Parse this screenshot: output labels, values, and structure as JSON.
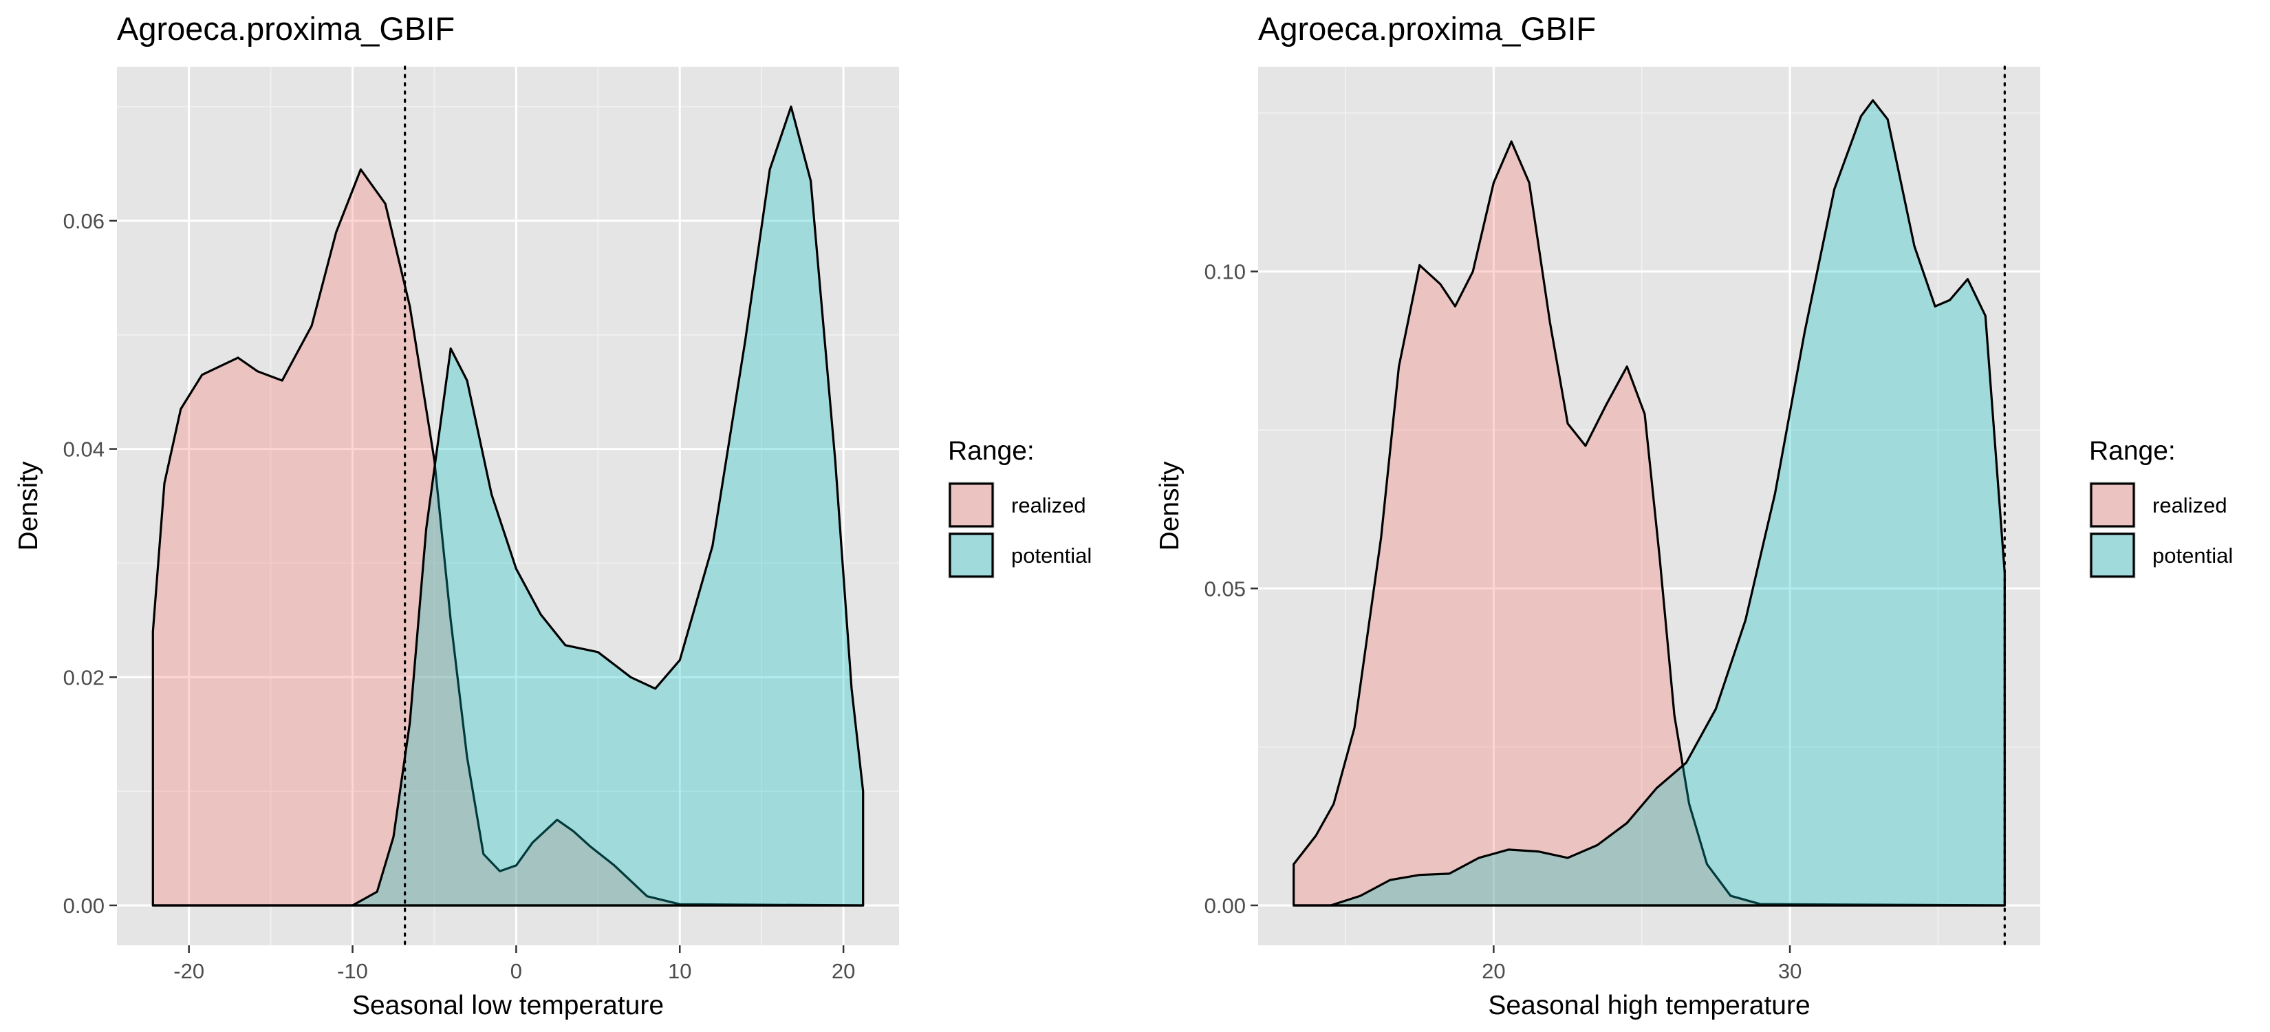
{
  "chart_data": [
    {
      "type": "area",
      "title": "Agroeca.proxima_GBIF",
      "xlabel": "Seasonal low temperature",
      "ylabel": "Density",
      "xlim": [
        -24.4,
        23.4
      ],
      "ylim": [
        -0.0035,
        0.0735
      ],
      "x_ticks": [
        -20,
        -10,
        0,
        10,
        20
      ],
      "x_tick_labels": [
        "-20",
        "-10",
        "0",
        "10",
        "20"
      ],
      "y_ticks": [
        0,
        0.02,
        0.04,
        0.06
      ],
      "y_tick_labels": [
        "0.00",
        "0.02",
        "0.04",
        "0.06"
      ],
      "grid": true,
      "reference_line": {
        "x": -6.8,
        "style": "dotted"
      },
      "legend": {
        "title": "Range:",
        "position": "right",
        "entries": [
          "realized",
          "potential"
        ]
      },
      "series": [
        {
          "name": "realized",
          "color": "#F8766D",
          "points": [
            [
              -22.2,
              0.024
            ],
            [
              -21.5,
              0.037
            ],
            [
              -20.5,
              0.0435
            ],
            [
              -19.2,
              0.0465
            ],
            [
              -17.0,
              0.048
            ],
            [
              -15.8,
              0.0468
            ],
            [
              -14.3,
              0.046
            ],
            [
              -12.5,
              0.0508
            ],
            [
              -11.0,
              0.059
            ],
            [
              -9.5,
              0.0645
            ],
            [
              -8.0,
              0.0615
            ],
            [
              -6.5,
              0.0525
            ],
            [
              -5.0,
              0.039
            ],
            [
              -4.0,
              0.025
            ],
            [
              -3.0,
              0.013
            ],
            [
              -2.0,
              0.0045
            ],
            [
              -1.0,
              0.003
            ],
            [
              0.0,
              0.0035
            ],
            [
              1.0,
              0.0055
            ],
            [
              2.5,
              0.0075
            ],
            [
              3.5,
              0.0065
            ],
            [
              4.5,
              0.0052
            ],
            [
              6.0,
              0.0035
            ],
            [
              8.0,
              0.0008
            ],
            [
              10.0,
              0.0001
            ],
            [
              21.2,
              0.0
            ]
          ]
        },
        {
          "name": "potential",
          "color": "#00BFC4",
          "points": [
            [
              -22.2,
              0.0
            ],
            [
              -10.0,
              0.0
            ],
            [
              -8.5,
              0.0012
            ],
            [
              -7.5,
              0.006
            ],
            [
              -6.5,
              0.016
            ],
            [
              -5.5,
              0.033
            ],
            [
              -4.0,
              0.0488
            ],
            [
              -3.0,
              0.046
            ],
            [
              -1.5,
              0.036
            ],
            [
              0.0,
              0.0295
            ],
            [
              1.5,
              0.0255
            ],
            [
              3.0,
              0.0228
            ],
            [
              5.0,
              0.0222
            ],
            [
              7.0,
              0.02
            ],
            [
              8.5,
              0.019
            ],
            [
              10.0,
              0.0215
            ],
            [
              12.0,
              0.0315
            ],
            [
              14.0,
              0.0495
            ],
            [
              15.5,
              0.0645
            ],
            [
              16.8,
              0.07
            ],
            [
              18.0,
              0.0635
            ],
            [
              19.5,
              0.039
            ],
            [
              20.5,
              0.019
            ],
            [
              21.2,
              0.01
            ]
          ]
        }
      ]
    },
    {
      "type": "area",
      "title": "Agroeca.proxima_GBIF",
      "xlabel": "Seasonal high temperature",
      "ylabel": "Density",
      "xlim": [
        12.05,
        38.45
      ],
      "ylim": [
        -0.0063,
        0.1323
      ],
      "x_ticks": [
        20,
        30
      ],
      "x_tick_labels": [
        "20",
        "30"
      ],
      "y_ticks": [
        0,
        0.05,
        0.1
      ],
      "y_tick_labels": [
        "0.00",
        "0.05",
        "0.10"
      ],
      "grid": true,
      "reference_line": {
        "x": 37.25,
        "style": "dotted"
      },
      "legend": {
        "title": "Range:",
        "position": "right",
        "entries": [
          "realized",
          "potential"
        ]
      },
      "series": [
        {
          "name": "realized",
          "color": "#F8766D",
          "points": [
            [
              13.25,
              0.0065
            ],
            [
              14.0,
              0.011
            ],
            [
              14.6,
              0.016
            ],
            [
              15.3,
              0.028
            ],
            [
              16.2,
              0.058
            ],
            [
              16.8,
              0.085
            ],
            [
              17.5,
              0.101
            ],
            [
              18.2,
              0.098
            ],
            [
              18.7,
              0.0945
            ],
            [
              19.3,
              0.1
            ],
            [
              20.0,
              0.114
            ],
            [
              20.6,
              0.1205
            ],
            [
              21.2,
              0.114
            ],
            [
              21.9,
              0.092
            ],
            [
              22.5,
              0.076
            ],
            [
              23.1,
              0.0725
            ],
            [
              23.8,
              0.079
            ],
            [
              24.5,
              0.085
            ],
            [
              25.1,
              0.0775
            ],
            [
              25.6,
              0.055
            ],
            [
              26.1,
              0.03
            ],
            [
              26.6,
              0.016
            ],
            [
              27.2,
              0.0065
            ],
            [
              28.0,
              0.0015
            ],
            [
              29.0,
              0.0002
            ],
            [
              37.25,
              0.0
            ]
          ]
        },
        {
          "name": "potential",
          "color": "#00BFC4",
          "points": [
            [
              13.25,
              0.0
            ],
            [
              14.5,
              0.0
            ],
            [
              15.5,
              0.0015
            ],
            [
              16.5,
              0.004
            ],
            [
              17.5,
              0.0048
            ],
            [
              18.5,
              0.005
            ],
            [
              19.5,
              0.0075
            ],
            [
              20.5,
              0.0088
            ],
            [
              21.5,
              0.0085
            ],
            [
              22.5,
              0.0075
            ],
            [
              23.5,
              0.0095
            ],
            [
              24.5,
              0.013
            ],
            [
              25.5,
              0.0185
            ],
            [
              26.5,
              0.0225
            ],
            [
              27.5,
              0.031
            ],
            [
              28.5,
              0.045
            ],
            [
              29.5,
              0.065
            ],
            [
              30.5,
              0.0905
            ],
            [
              31.5,
              0.113
            ],
            [
              32.4,
              0.1245
            ],
            [
              32.8,
              0.127
            ],
            [
              33.3,
              0.124
            ],
            [
              34.2,
              0.104
            ],
            [
              34.9,
              0.0945
            ],
            [
              35.4,
              0.0955
            ],
            [
              36.0,
              0.0988
            ],
            [
              36.6,
              0.093
            ],
            [
              37.25,
              0.0525
            ]
          ]
        }
      ]
    }
  ]
}
